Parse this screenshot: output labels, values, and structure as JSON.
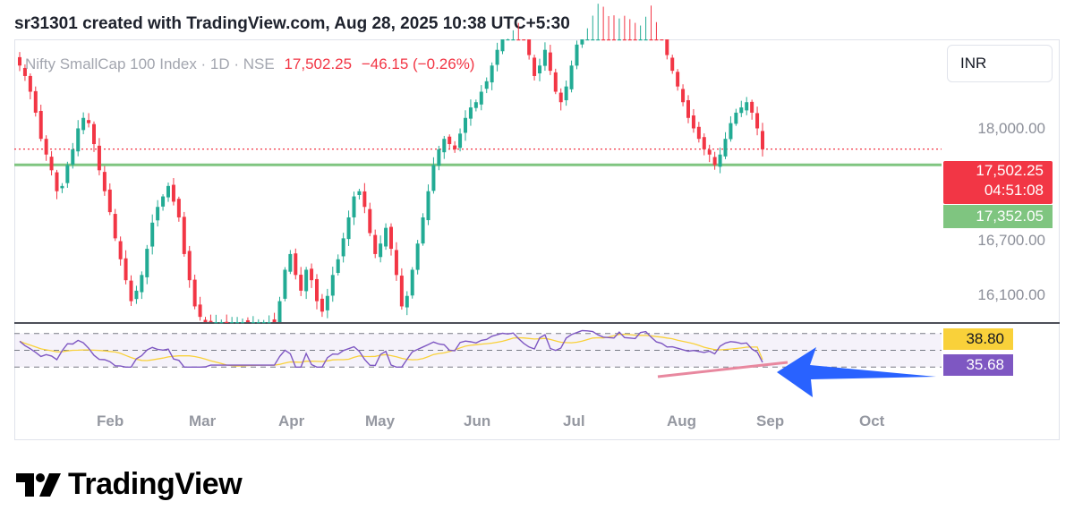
{
  "header": {
    "text": "sr31301 created with TradingView.com, Aug 28, 2025 10:38 UTC+5:30"
  },
  "legend": {
    "name": "Nifty SmallCap 100 Index · 1D · NSE",
    "price": "17,502.25",
    "change": "−46.15 (−0.26%)"
  },
  "currency_button": "INR",
  "price_axis": {
    "labels": [
      "18,000.00",
      "16,700.00",
      "16,100.00"
    ]
  },
  "tags": {
    "last_price": "17,502.25",
    "countdown": "04:51:08",
    "support": "17,352.05",
    "rsi_ma": "38.80",
    "rsi": "35.68"
  },
  "months": [
    "Feb",
    "Mar",
    "Apr",
    "May",
    "Jun",
    "Jul",
    "Aug",
    "Sep",
    "Oct"
  ],
  "brand": {
    "name": "TradingView"
  },
  "colors": {
    "up": "#22ab94",
    "down": "#f23645",
    "support_line": "#7fc580",
    "rsi_line": "#7e57c2",
    "rsi_ma_line": "#f9d13a",
    "arrow": "#2962ff",
    "trendline": "#e8889f"
  },
  "chart_data": {
    "type": "candlestick",
    "title": "Nifty SmallCap 100 Index · 1D · NSE",
    "ylim": [
      15850,
      18550
    ],
    "horizontal_lines": [
      {
        "value": 17352.05,
        "style": "solid",
        "color": "#7fc580"
      },
      {
        "value": 17502.25,
        "style": "dotted",
        "color": "#f23645"
      }
    ],
    "x_ticks": [
      "Feb",
      "Mar",
      "Apr",
      "May",
      "Jun",
      "Jul",
      "Aug",
      "Sep",
      "Oct"
    ],
    "closes": [
      18300,
      18200,
      18050,
      17850,
      17600,
      17450,
      17300,
      17100,
      17150,
      17350,
      17500,
      17700,
      17800,
      17750,
      17550,
      17300,
      17100,
      16900,
      16650,
      16450,
      16250,
      16050,
      16150,
      16300,
      16550,
      16800,
      16950,
      17050,
      17150,
      17000,
      16850,
      16500,
      16250,
      16000,
      15900,
      15850,
      15850,
      15850,
      15850,
      15850,
      15850,
      15850,
      15850,
      15850,
      15850,
      15850,
      15850,
      15850,
      15850,
      16050,
      16350,
      16500,
      16300,
      16150,
      16350,
      16250,
      16050,
      15950,
      16100,
      16300,
      16450,
      16650,
      16850,
      17050,
      17100,
      16950,
      16700,
      16500,
      16600,
      16750,
      16550,
      16300,
      16000,
      16100,
      16350,
      16600,
      16850,
      17100,
      17350,
      17500,
      17600,
      17550,
      17500,
      17650,
      17800,
      17900,
      17950,
      18050,
      18150,
      18300,
      18450,
      18600,
      18700,
      18800,
      18750,
      18600,
      18400,
      18200,
      18300,
      18450,
      18250,
      18050,
      17950,
      18100,
      18300,
      18500,
      18700,
      18850,
      18950,
      18950,
      18900,
      18850,
      18800,
      18900,
      18850,
      18800,
      18750,
      18850,
      18950,
      18900,
      18750,
      18600,
      18400,
      18250,
      18100,
      17950,
      17800,
      17700,
      17600,
      17500,
      17450,
      17350,
      17450,
      17600,
      17750,
      17850,
      17900,
      17950,
      17850,
      17700,
      17500
    ]
  },
  "rsi_panel": {
    "levels": [
      70,
      50,
      30
    ],
    "rsi": 35.68,
    "rsi_ma": 38.8
  }
}
